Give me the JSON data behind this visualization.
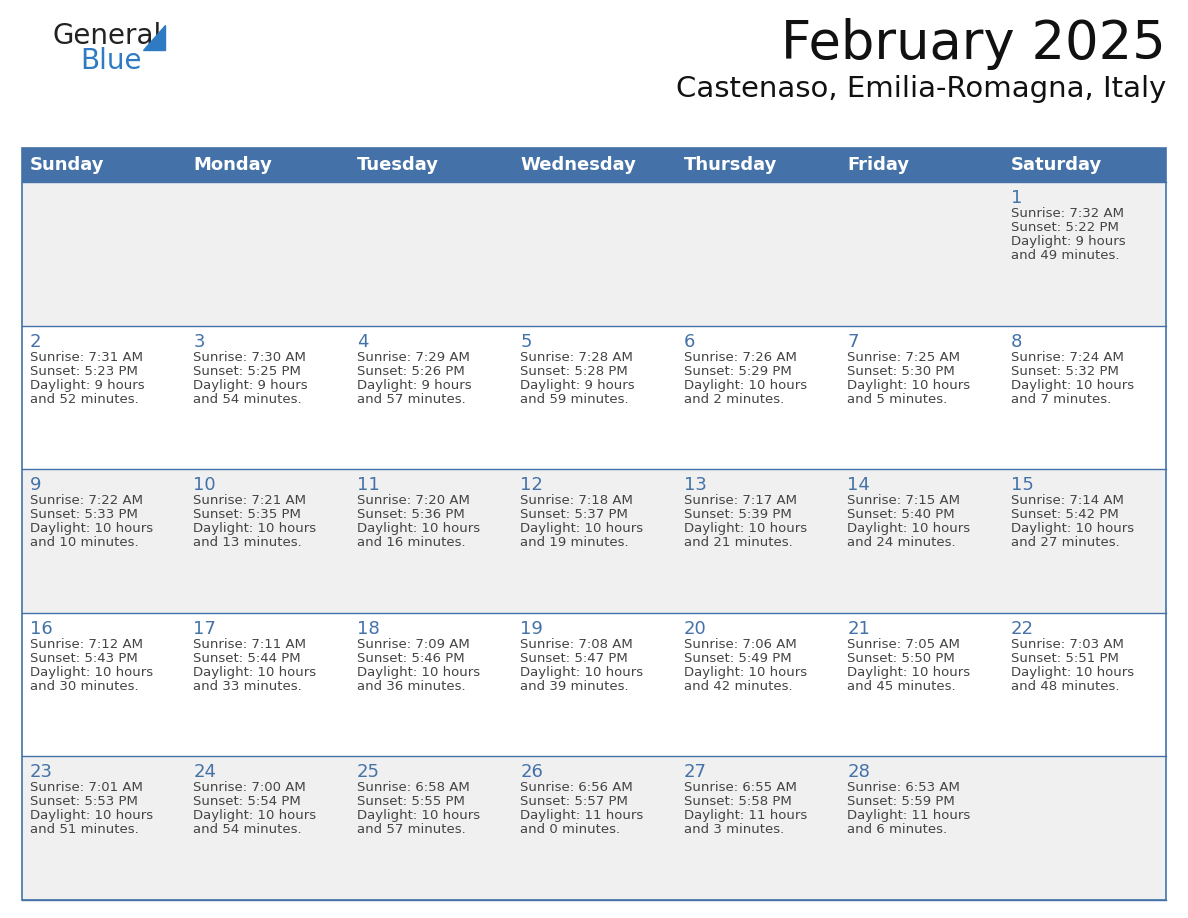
{
  "title": "February 2025",
  "subtitle": "Castenaso, Emilia-Romagna, Italy",
  "days_of_week": [
    "Sunday",
    "Monday",
    "Tuesday",
    "Wednesday",
    "Thursday",
    "Friday",
    "Saturday"
  ],
  "header_bg": "#4472A8",
  "header_text": "#FFFFFF",
  "row_bg_odd": "#F0F0F0",
  "row_bg_even": "#FFFFFF",
  "border_color": "#4472A8",
  "day_number_color": "#4472A8",
  "text_color": "#444444",
  "calendar_data": [
    [
      null,
      null,
      null,
      null,
      null,
      null,
      {
        "day": 1,
        "sunrise": "7:32 AM",
        "sunset": "5:22 PM",
        "daylight": "9 hours and 49 minutes."
      }
    ],
    [
      {
        "day": 2,
        "sunrise": "7:31 AM",
        "sunset": "5:23 PM",
        "daylight": "9 hours and 52 minutes."
      },
      {
        "day": 3,
        "sunrise": "7:30 AM",
        "sunset": "5:25 PM",
        "daylight": "9 hours and 54 minutes."
      },
      {
        "day": 4,
        "sunrise": "7:29 AM",
        "sunset": "5:26 PM",
        "daylight": "9 hours and 57 minutes."
      },
      {
        "day": 5,
        "sunrise": "7:28 AM",
        "sunset": "5:28 PM",
        "daylight": "9 hours and 59 minutes."
      },
      {
        "day": 6,
        "sunrise": "7:26 AM",
        "sunset": "5:29 PM",
        "daylight": "10 hours and 2 minutes."
      },
      {
        "day": 7,
        "sunrise": "7:25 AM",
        "sunset": "5:30 PM",
        "daylight": "10 hours and 5 minutes."
      },
      {
        "day": 8,
        "sunrise": "7:24 AM",
        "sunset": "5:32 PM",
        "daylight": "10 hours and 7 minutes."
      }
    ],
    [
      {
        "day": 9,
        "sunrise": "7:22 AM",
        "sunset": "5:33 PM",
        "daylight": "10 hours and 10 minutes."
      },
      {
        "day": 10,
        "sunrise": "7:21 AM",
        "sunset": "5:35 PM",
        "daylight": "10 hours and 13 minutes."
      },
      {
        "day": 11,
        "sunrise": "7:20 AM",
        "sunset": "5:36 PM",
        "daylight": "10 hours and 16 minutes."
      },
      {
        "day": 12,
        "sunrise": "7:18 AM",
        "sunset": "5:37 PM",
        "daylight": "10 hours and 19 minutes."
      },
      {
        "day": 13,
        "sunrise": "7:17 AM",
        "sunset": "5:39 PM",
        "daylight": "10 hours and 21 minutes."
      },
      {
        "day": 14,
        "sunrise": "7:15 AM",
        "sunset": "5:40 PM",
        "daylight": "10 hours and 24 minutes."
      },
      {
        "day": 15,
        "sunrise": "7:14 AM",
        "sunset": "5:42 PM",
        "daylight": "10 hours and 27 minutes."
      }
    ],
    [
      {
        "day": 16,
        "sunrise": "7:12 AM",
        "sunset": "5:43 PM",
        "daylight": "10 hours and 30 minutes."
      },
      {
        "day": 17,
        "sunrise": "7:11 AM",
        "sunset": "5:44 PM",
        "daylight": "10 hours and 33 minutes."
      },
      {
        "day": 18,
        "sunrise": "7:09 AM",
        "sunset": "5:46 PM",
        "daylight": "10 hours and 36 minutes."
      },
      {
        "day": 19,
        "sunrise": "7:08 AM",
        "sunset": "5:47 PM",
        "daylight": "10 hours and 39 minutes."
      },
      {
        "day": 20,
        "sunrise": "7:06 AM",
        "sunset": "5:49 PM",
        "daylight": "10 hours and 42 minutes."
      },
      {
        "day": 21,
        "sunrise": "7:05 AM",
        "sunset": "5:50 PM",
        "daylight": "10 hours and 45 minutes."
      },
      {
        "day": 22,
        "sunrise": "7:03 AM",
        "sunset": "5:51 PM",
        "daylight": "10 hours and 48 minutes."
      }
    ],
    [
      {
        "day": 23,
        "sunrise": "7:01 AM",
        "sunset": "5:53 PM",
        "daylight": "10 hours and 51 minutes."
      },
      {
        "day": 24,
        "sunrise": "7:00 AM",
        "sunset": "5:54 PM",
        "daylight": "10 hours and 54 minutes."
      },
      {
        "day": 25,
        "sunrise": "6:58 AM",
        "sunset": "5:55 PM",
        "daylight": "10 hours and 57 minutes."
      },
      {
        "day": 26,
        "sunrise": "6:56 AM",
        "sunset": "5:57 PM",
        "daylight": "11 hours and 0 minutes."
      },
      {
        "day": 27,
        "sunrise": "6:55 AM",
        "sunset": "5:58 PM",
        "daylight": "11 hours and 3 minutes."
      },
      {
        "day": 28,
        "sunrise": "6:53 AM",
        "sunset": "5:59 PM",
        "daylight": "11 hours and 6 minutes."
      },
      null
    ]
  ],
  "logo_general_color": "#222222",
  "logo_blue_color": "#2E7BC4",
  "fig_width": 11.88,
  "fig_height": 9.18,
  "dpi": 100
}
